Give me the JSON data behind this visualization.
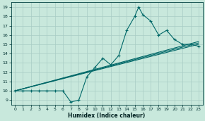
{
  "title": "",
  "xlabel": "Humidex (Indice chaleur)",
  "bg_color": "#c8e8dc",
  "grid_color": "#a8ccc4",
  "line_color": "#006868",
  "xlim": [
    -0.5,
    23.5
  ],
  "ylim": [
    8.5,
    19.5
  ],
  "xticks": [
    0,
    1,
    2,
    3,
    4,
    5,
    6,
    7,
    8,
    9,
    10,
    11,
    12,
    13,
    14,
    15,
    16,
    17,
    18,
    19,
    20,
    21,
    22,
    23
  ],
  "yticks": [
    9,
    10,
    11,
    12,
    13,
    14,
    15,
    16,
    17,
    18,
    19
  ],
  "main_x": [
    0,
    1,
    2,
    3,
    4,
    5,
    6,
    7,
    8,
    9,
    10,
    11,
    12,
    13,
    14,
    15,
    15.5,
    16,
    17,
    18,
    19,
    20,
    21,
    22,
    23
  ],
  "main_y": [
    10.0,
    10.0,
    10.0,
    10.0,
    10.0,
    10.0,
    10.0,
    8.8,
    9.0,
    11.5,
    12.5,
    13.5,
    12.8,
    13.8,
    16.5,
    18.0,
    19.0,
    18.2,
    17.5,
    16.0,
    16.5,
    15.5,
    15.0,
    15.0,
    14.8
  ],
  "line1_x": [
    0,
    23
  ],
  "line1_y": [
    10.0,
    15.0
  ],
  "line2_x": [
    0,
    23
  ],
  "line2_y": [
    10.0,
    15.0
  ],
  "line3_x": [
    0,
    23
  ],
  "line3_y": [
    10.0,
    15.0
  ],
  "marker": "+",
  "markersize": 3,
  "linewidth": 0.8,
  "xlabel_fontsize": 5.5,
  "tick_fontsize": 4.5
}
